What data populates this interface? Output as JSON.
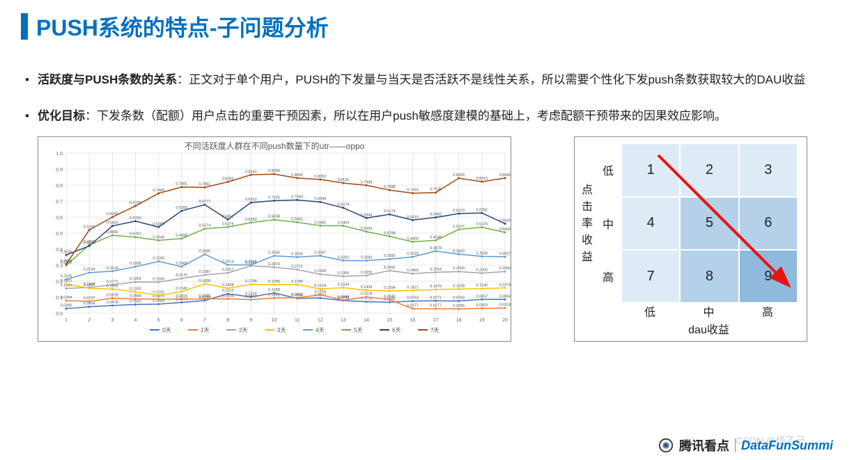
{
  "title": "PUSH系统的特点-子问题分析",
  "bullets": [
    {
      "bold": "活跃度与PUSH条数的关系",
      "text": "：正文对于单个用户，PUSH的下发量与当天是否活跃不是线性关系，所以需要个性化下发push条数获取较大的DAU收益"
    },
    {
      "bold": "优化目标",
      "text": "：下发条数（配额）用户点击的重要干预因素，所以在用户push敏感度建模的基础上，考虑配额干预带来的因果效应影响。"
    }
  ],
  "line_chart": {
    "type": "line",
    "title": "不同活跃度人群在不同push数量下的utr——oppo",
    "xlim": [
      1,
      20
    ],
    "ylim": [
      0,
      1
    ],
    "ytick_step": 0.1,
    "x_categories": [
      1,
      2,
      3,
      4,
      5,
      6,
      7,
      8,
      9,
      10,
      11,
      12,
      13,
      14,
      15,
      16,
      17,
      18,
      19,
      20
    ],
    "grid_color": "#d0d0d0",
    "background_color": "#ffffff",
    "label_fontsize": 7,
    "legend_items": [
      "0天",
      "1天",
      "2天",
      "3天",
      "4天",
      "5天",
      "6天",
      "7天"
    ],
    "series": [
      {
        "name": "0天",
        "color": "#4472c4",
        "values": [
          0.028,
          0.0404,
          0.0478,
          0.0541,
          0.0564,
          0.0674,
          0.0788,
          0.121,
          0.1014,
          0.1258,
          0.0924,
          0.0943,
          0.0789,
          0.0714,
          0.0686,
          0.0753,
          0.0771,
          0.0763,
          0.0857,
          0.0856
        ]
      },
      {
        "name": "1天",
        "color": "#ed7d31",
        "values": [
          0.0784,
          0.0737,
          0.0928,
          0.0884,
          0.0874,
          0.0874,
          0.0886,
          0.0898,
          0.0841,
          0.0941,
          0.0962,
          0.1154,
          0.0808,
          0.1018,
          0.0845,
          0.0277,
          0.0277,
          0.0265,
          0.0303,
          0.0318
        ]
      },
      {
        "name": "2天",
        "color": "#a5a5a5",
        "values": [
          0.1544,
          0.1606,
          0.1771,
          0.1952,
          0.1935,
          0.217,
          0.2387,
          0.2517,
          0.2955,
          0.287,
          0.2722,
          0.2428,
          0.2305,
          0.2355,
          0.266,
          0.2469,
          0.2554,
          0.26,
          0.25,
          0.26
        ]
      },
      {
        "name": "3天",
        "color": "#ffc000",
        "values": [
          0.1821,
          0.1557,
          0.1506,
          0.1332,
          0.1102,
          0.1347,
          0.183,
          0.1558,
          0.1798,
          0.1789,
          0.178,
          0.1518,
          0.1594,
          0.1429,
          0.1394,
          0.1421,
          0.1479,
          0.1508,
          0.154,
          0.1574
        ]
      },
      {
        "name": "4天",
        "color": "#5b9bd5",
        "values": [
          0.2105,
          0.2534,
          0.2618,
          0.2905,
          0.324,
          0.2905,
          0.368,
          0.3014,
          0.3015,
          0.3583,
          0.3505,
          0.3587,
          0.3281,
          0.3283,
          0.3383,
          0.3518,
          0.3879,
          0.3683,
          0.355,
          0.3527
        ]
      },
      {
        "name": "5天",
        "color": "#70ad47",
        "values": [
          0.2982,
          0.4268,
          0.4865,
          0.4751,
          0.4548,
          0.4658,
          0.5274,
          0.5379,
          0.5659,
          0.5838,
          0.5681,
          0.5465,
          0.5463,
          0.5092,
          0.4798,
          0.4458,
          0.4548,
          0.5227,
          0.537,
          0.505
        ]
      },
      {
        "name": "6天",
        "color": "#264478",
        "values": [
          0.3636,
          0.42,
          0.545,
          0.575,
          0.538,
          0.6393,
          0.6777,
          0.5851,
          0.6912,
          0.7025,
          0.7069,
          0.6948,
          0.6579,
          0.5944,
          0.6174,
          0.5815,
          0.5982,
          0.6223,
          0.6261,
          0.5592
        ]
      },
      {
        "name": "7天",
        "color": "#9e480e",
        "values": [
          0.3056,
          0.52,
          0.6,
          0.67,
          0.7486,
          0.7881,
          0.7861,
          0.82,
          0.864,
          0.8689,
          0.8442,
          0.8352,
          0.813,
          0.7988,
          0.7688,
          0.7493,
          0.7535,
          0.8435,
          0.8215,
          0.844
        ]
      }
    ]
  },
  "matrix": {
    "type": "heatmap",
    "ylabel": "点击率收益",
    "xlabel": "dau收益",
    "row_labels": [
      "低",
      "中",
      "高"
    ],
    "col_labels": [
      "低",
      "中",
      "高"
    ],
    "cells": [
      [
        {
          "v": 1,
          "c": "#deebf7"
        },
        {
          "v": 2,
          "c": "#deebf7"
        },
        {
          "v": 3,
          "c": "#deebf7"
        }
      ],
      [
        {
          "v": 4,
          "c": "#deebf7"
        },
        {
          "v": 5,
          "c": "#b5d0e9"
        },
        {
          "v": 6,
          "c": "#b5d0e9"
        }
      ],
      [
        {
          "v": 7,
          "c": "#deebf7"
        },
        {
          "v": 8,
          "c": "#b5d0e9"
        },
        {
          "v": 9,
          "c": "#8fb9dd"
        }
      ]
    ],
    "arrow_color": "#e81313",
    "cell_fontsize": 20,
    "label_fontsize": 16
  },
  "footer": {
    "brand": "腾讯看点",
    "partner": "DataFunSummi"
  },
  "watermark": "CSDN @悟乙己"
}
